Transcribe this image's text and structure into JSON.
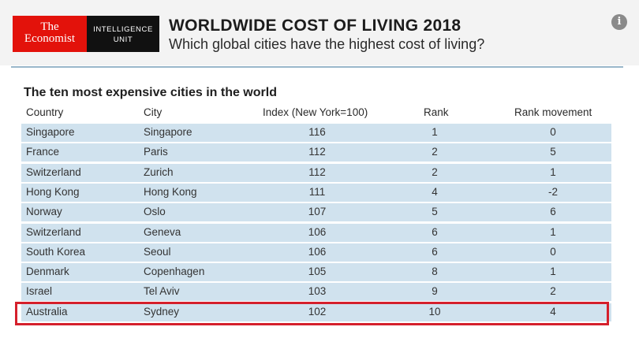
{
  "logo": {
    "brand_line1": "The",
    "brand_line2": "Economist",
    "unit_line1": "INTELLIGENCE",
    "unit_line2": "UNIT"
  },
  "header": {
    "title": "WORLDWIDE COST OF LIVING 2018",
    "subtitle": "Which global cities have the highest cost of living?",
    "info_icon": "info-icon"
  },
  "table": {
    "title": "The ten most expensive cities in the world",
    "columns": [
      "Country",
      "City",
      "Index (New York=100)",
      "Rank",
      "Rank movement"
    ],
    "rows": [
      {
        "country": "Singapore",
        "city": "Singapore",
        "index": "116",
        "rank": "1",
        "movement": "0"
      },
      {
        "country": "France",
        "city": "Paris",
        "index": "112",
        "rank": "2",
        "movement": "5"
      },
      {
        "country": "Switzerland",
        "city": "Zurich",
        "index": "112",
        "rank": "2",
        "movement": "1"
      },
      {
        "country": "Hong Kong",
        "city": "Hong Kong",
        "index": "111",
        "rank": "4",
        "movement": "-2"
      },
      {
        "country": "Norway",
        "city": "Oslo",
        "index": "107",
        "rank": "5",
        "movement": "6"
      },
      {
        "country": "Switzerland",
        "city": "Geneva",
        "index": "106",
        "rank": "6",
        "movement": "1"
      },
      {
        "country": "South Korea",
        "city": "Seoul",
        "index": "106",
        "rank": "6",
        "movement": "0"
      },
      {
        "country": "Denmark",
        "city": "Copenhagen",
        "index": "105",
        "rank": "8",
        "movement": "1"
      },
      {
        "country": "Israel",
        "city": "Tel Aviv",
        "index": "103",
        "rank": "9",
        "movement": "2"
      },
      {
        "country": "Australia",
        "city": "Sydney",
        "index": "102",
        "rank": "10",
        "movement": "4"
      }
    ]
  },
  "colors": {
    "brand_red": "#e3120b",
    "row_fill": "#d0e2ee",
    "highlight_border": "#d5202c"
  }
}
